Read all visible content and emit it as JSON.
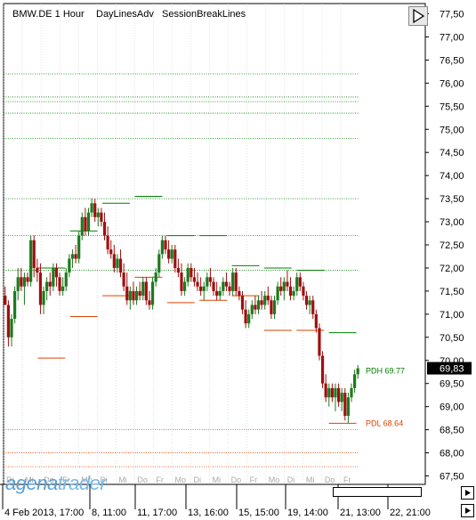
{
  "header": {
    "instrument": "BMW.DE 1 Hour",
    "indicator1": "DayLinesAdv",
    "indicator2": "SessionBreakLines"
  },
  "logo": {
    "part1": "agena",
    "part2": "trader"
  },
  "icons": {
    "collapse": "play-triangle-icon",
    "scroll_right": "arrow-right-icon"
  },
  "colors": {
    "up_candle": "#1e7a1e",
    "down_candle": "#a01010",
    "pdh": "#008000",
    "pdl": "#e04000",
    "grid": "#c8c8c8",
    "current_price_bg": "#000000"
  },
  "price_axis": {
    "ticks": [
      "77,50",
      "77,00",
      "76,50",
      "76,00",
      "75,50",
      "75,00",
      "74,50",
      "74,00",
      "73,50",
      "73,00",
      "72,50",
      "72,00",
      "71,50",
      "71,00",
      "70,50",
      "70,00",
      "69,50",
      "69,00",
      "68,50",
      "68,00",
      "67,50"
    ],
    "current_price": "69,83"
  },
  "time_axis": {
    "day_labels": [
      "Di",
      "Mi",
      "Do",
      "Fr",
      "Mo",
      "Di",
      "Mi",
      "Do",
      "Fr",
      "Mo",
      "Di",
      "Mi",
      "Do",
      "Fr",
      "Mo",
      "Di",
      "Mi",
      "Do",
      "Fr"
    ],
    "date_labels": [
      "4 Feb 2013, 17:00",
      "8, 11:00",
      "11, 17:00",
      "13, 16:00",
      "15, 15:00",
      "19, 14:00",
      "21, 13:00",
      "22, 21:00"
    ]
  },
  "chart_data": {
    "type": "candlestick",
    "title": "BMW.DE 1 Hour",
    "ylim": [
      67.2,
      77.7
    ],
    "days": [
      {
        "label": "Di",
        "high": null,
        "low": null,
        "close": 72.0
      },
      {
        "label": "Mi",
        "high": 72.0,
        "low": 70.05,
        "close": 71.6
      },
      {
        "label": "Do",
        "high": 72.8,
        "low": 70.95,
        "close": 72.6
      },
      {
        "label": "Fr",
        "high": 73.4,
        "low": 71.4,
        "close": 73.5
      },
      {
        "label": "Mo",
        "high": 73.55,
        "low": 71.8,
        "close": 71.7
      },
      {
        "label": "Di",
        "high": 72.7,
        "low": 71.25,
        "close": 72.4
      },
      {
        "label": "Mi",
        "high": 72.7,
        "low": 71.3,
        "close": 72.0
      },
      {
        "label": "Do",
        "high": 72.05,
        "low": 71.4,
        "close": 71.9
      },
      {
        "label": "Fr",
        "high": 72.0,
        "low": 70.65,
        "close": 71.8
      },
      {
        "label": "Mo",
        "high": 71.95,
        "low": 70.65,
        "close": 70.0
      },
      {
        "label": "Di",
        "high": 70.6,
        "low": 68.64,
        "close": 69.83
      }
    ],
    "candles": [
      [
        71.4,
        71.6,
        71.2,
        71.2
      ],
      [
        71.2,
        71.3,
        70.3,
        70.5
      ],
      [
        70.5,
        71.0,
        70.3,
        70.9
      ],
      [
        70.9,
        71.6,
        70.8,
        71.5
      ],
      [
        71.5,
        72.0,
        71.3,
        71.8
      ],
      [
        71.8,
        72.0,
        71.5,
        71.6
      ],
      [
        71.6,
        71.9,
        71.2,
        71.8
      ],
      [
        71.8,
        71.9,
        71.6,
        71.7
      ],
      [
        71.7,
        72.7,
        71.6,
        72.6
      ],
      [
        72.6,
        72.7,
        71.8,
        72.0
      ],
      [
        72.0,
        72.2,
        71.7,
        71.9
      ],
      [
        71.9,
        72.1,
        71.0,
        71.2
      ],
      [
        71.2,
        71.6,
        71.0,
        71.5
      ],
      [
        71.5,
        71.8,
        71.3,
        71.7
      ],
      [
        71.7,
        71.9,
        71.4,
        71.6
      ],
      [
        71.6,
        72.1,
        71.5,
        72.0
      ],
      [
        72.0,
        72.1,
        71.6,
        71.8
      ],
      [
        71.8,
        71.9,
        71.4,
        71.5
      ],
      [
        71.5,
        71.8,
        71.4,
        71.6
      ],
      [
        71.6,
        72.0,
        71.5,
        71.9
      ],
      [
        71.9,
        72.3,
        71.8,
        72.2
      ],
      [
        72.2,
        72.4,
        72.0,
        72.3
      ],
      [
        72.3,
        72.5,
        72.1,
        72.2
      ],
      [
        72.2,
        72.8,
        72.1,
        72.7
      ],
      [
        72.7,
        73.2,
        72.6,
        73.1
      ],
      [
        73.1,
        73.3,
        72.7,
        72.8
      ],
      [
        72.8,
        73.3,
        72.7,
        73.2
      ],
      [
        73.2,
        73.5,
        73.1,
        73.4
      ],
      [
        73.4,
        73.5,
        73.0,
        73.1
      ],
      [
        73.1,
        73.3,
        72.9,
        73.2
      ],
      [
        73.2,
        73.3,
        72.9,
        73.0
      ],
      [
        73.0,
        73.2,
        72.6,
        72.7
      ],
      [
        72.7,
        72.9,
        72.3,
        72.4
      ],
      [
        72.4,
        72.6,
        72.2,
        72.3
      ],
      [
        72.3,
        72.5,
        71.9,
        72.0
      ],
      [
        72.0,
        72.3,
        71.9,
        72.2
      ],
      [
        72.2,
        72.4,
        71.8,
        71.9
      ],
      [
        71.9,
        72.1,
        71.5,
        71.6
      ],
      [
        71.6,
        71.9,
        71.2,
        71.3
      ],
      [
        71.3,
        71.6,
        71.1,
        71.5
      ],
      [
        71.5,
        71.7,
        71.2,
        71.3
      ],
      [
        71.3,
        71.6,
        71.2,
        71.5
      ],
      [
        71.5,
        71.7,
        71.3,
        71.4
      ],
      [
        71.4,
        71.8,
        71.3,
        71.7
      ],
      [
        71.7,
        71.8,
        71.2,
        71.3
      ],
      [
        71.3,
        71.5,
        71.1,
        71.2
      ],
      [
        71.2,
        71.8,
        71.1,
        71.7
      ],
      [
        71.7,
        72.0,
        71.6,
        71.9
      ],
      [
        71.9,
        72.4,
        71.8,
        72.3
      ],
      [
        72.3,
        72.7,
        72.2,
        72.6
      ],
      [
        72.6,
        72.7,
        72.3,
        72.4
      ],
      [
        72.4,
        72.6,
        72.1,
        72.2
      ],
      [
        72.2,
        72.5,
        72.1,
        72.4
      ],
      [
        72.4,
        72.5,
        71.9,
        72.0
      ],
      [
        72.0,
        72.2,
        71.8,
        71.9
      ],
      [
        71.9,
        72.1,
        71.4,
        71.5
      ],
      [
        71.5,
        71.8,
        71.4,
        71.7
      ],
      [
        71.7,
        72.1,
        71.6,
        72.0
      ],
      [
        72.0,
        72.1,
        71.7,
        71.8
      ],
      [
        71.8,
        72.0,
        71.6,
        71.7
      ],
      [
        71.7,
        71.9,
        71.5,
        71.6
      ],
      [
        71.6,
        71.8,
        71.4,
        71.5
      ],
      [
        71.5,
        71.7,
        71.3,
        71.6
      ],
      [
        71.6,
        71.9,
        71.5,
        71.8
      ],
      [
        71.8,
        72.0,
        71.6,
        71.7
      ],
      [
        71.7,
        71.8,
        71.4,
        71.5
      ],
      [
        71.5,
        71.7,
        71.3,
        71.4
      ],
      [
        71.4,
        71.6,
        71.3,
        71.5
      ],
      [
        71.5,
        71.8,
        71.4,
        71.7
      ],
      [
        71.7,
        71.9,
        71.5,
        71.6
      ],
      [
        71.6,
        71.7,
        71.4,
        71.5
      ],
      [
        71.5,
        72.0,
        71.4,
        71.9
      ],
      [
        71.9,
        72.0,
        71.4,
        71.5
      ],
      [
        71.5,
        71.6,
        71.3,
        71.4
      ],
      [
        71.4,
        71.5,
        71.0,
        71.1
      ],
      [
        71.1,
        71.3,
        70.7,
        70.8
      ],
      [
        70.8,
        71.1,
        70.7,
        71.0
      ],
      [
        71.0,
        71.3,
        70.9,
        71.2
      ],
      [
        71.2,
        71.4,
        71.0,
        71.1
      ],
      [
        71.1,
        71.4,
        71.0,
        71.3
      ],
      [
        71.3,
        71.5,
        71.1,
        71.2
      ],
      [
        71.2,
        71.5,
        71.1,
        71.4
      ],
      [
        71.4,
        71.6,
        71.2,
        71.3
      ],
      [
        71.3,
        71.4,
        70.9,
        71.0
      ],
      [
        71.0,
        71.4,
        70.9,
        71.3
      ],
      [
        71.3,
        71.7,
        71.2,
        71.6
      ],
      [
        71.6,
        71.8,
        71.4,
        71.5
      ],
      [
        71.5,
        71.8,
        71.3,
        71.7
      ],
      [
        71.7,
        71.95,
        71.5,
        71.6
      ],
      [
        71.6,
        71.8,
        71.3,
        71.4
      ],
      [
        71.4,
        71.6,
        71.3,
        71.5
      ],
      [
        71.5,
        71.9,
        71.4,
        71.8
      ],
      [
        71.8,
        71.9,
        71.5,
        71.6
      ],
      [
        71.6,
        71.7,
        71.3,
        71.4
      ],
      [
        71.4,
        71.5,
        71.1,
        71.2
      ],
      [
        71.2,
        71.4,
        71.0,
        71.3
      ],
      [
        71.3,
        71.4,
        70.9,
        71.0
      ],
      [
        71.0,
        71.1,
        70.6,
        70.7
      ],
      [
        70.7,
        70.8,
        70.0,
        70.1
      ],
      [
        70.1,
        70.2,
        69.4,
        69.5
      ],
      [
        69.5,
        69.7,
        69.1,
        69.2
      ],
      [
        69.2,
        69.5,
        69.0,
        69.4
      ],
      [
        69.4,
        69.5,
        69.1,
        69.2
      ],
      [
        69.2,
        69.5,
        68.9,
        69.4
      ],
      [
        69.4,
        69.5,
        69.0,
        69.1
      ],
      [
        69.1,
        69.4,
        68.9,
        69.3
      ],
      [
        69.3,
        69.4,
        68.7,
        68.8
      ],
      [
        68.8,
        69.3,
        68.64,
        69.2
      ],
      [
        69.2,
        69.5,
        69.1,
        69.4
      ],
      [
        69.4,
        69.8,
        69.3,
        69.7
      ],
      [
        69.7,
        69.9,
        69.6,
        69.83
      ]
    ],
    "pdh": {
      "label": "PDH 69.77",
      "value": 69.77
    },
    "pdl": {
      "label": "PDL 68.64",
      "value": 68.64
    },
    "dotted_levels": [
      76.2,
      75.7,
      75.6,
      75.35,
      74.8,
      73.5,
      72.7,
      71.95,
      68.5,
      68.0,
      67.7
    ]
  }
}
